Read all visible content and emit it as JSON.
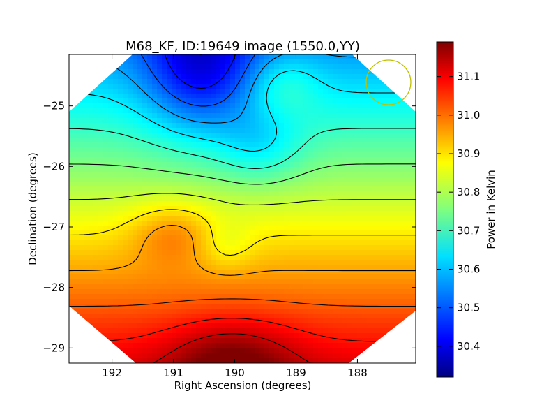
{
  "chart_data": {
    "type": "heatmap",
    "title": "M68_KF, ID:19649 image (1550.0,YY)",
    "xlabel": "Right Ascension (degrees)",
    "ylabel": "Declination (degrees)",
    "xlim": [
      192.7,
      187.05
    ],
    "ylim": [
      -29.25,
      -24.15
    ],
    "x_ticks": [
      192,
      191,
      190,
      189,
      188
    ],
    "y_ticks": [
      -25,
      -26,
      -27,
      -28,
      -29
    ],
    "x_tick_labels": [
      "192",
      "191",
      "190",
      "189",
      "188"
    ],
    "y_tick_labels": [
      "−25",
      "−26",
      "−27",
      "−28",
      "−29"
    ],
    "colorbar": {
      "label": "Power in Kelvin",
      "range": [
        30.32,
        31.19
      ],
      "ticks": [
        30.4,
        30.5,
        30.6,
        30.7,
        30.8,
        30.9,
        31.0,
        31.1
      ],
      "tick_labels": [
        "30.4",
        "30.5",
        "30.6",
        "30.7",
        "30.8",
        "30.9",
        "31.0",
        "31.1"
      ],
      "colormap": "jet"
    },
    "field": {
      "min_location": [
        190.5,
        -24.6
      ],
      "max_location": [
        190.0,
        -29.2
      ],
      "min_value": 30.32,
      "max_value": 31.19
    },
    "contours": true,
    "footprint": "octagon",
    "beam_circle": {
      "ra": 187.5,
      "dec": -24.65,
      "radius_deg": 0.36,
      "color": "#c0c000"
    }
  }
}
